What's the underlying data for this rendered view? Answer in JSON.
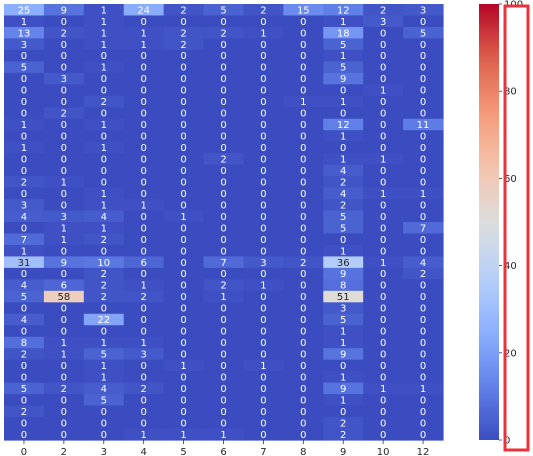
{
  "chart_data": {
    "type": "heatmap",
    "title": "",
    "xlabel": "",
    "ylabel": "",
    "x_tick_labels": [
      "0",
      "2",
      "3",
      "4",
      "5",
      "6",
      "7",
      "8",
      "9",
      "10",
      "12"
    ],
    "values": [
      [
        25,
        9,
        1,
        24,
        2,
        5,
        2,
        15,
        12,
        2,
        3
      ],
      [
        1,
        0,
        1,
        0,
        0,
        0,
        0,
        0,
        1,
        3,
        0
      ],
      [
        13,
        2,
        1,
        1,
        2,
        2,
        1,
        0,
        18,
        0,
        5
      ],
      [
        3,
        0,
        1,
        1,
        2,
        0,
        0,
        0,
        5,
        0,
        0
      ],
      [
        0,
        0,
        0,
        0,
        0,
        0,
        0,
        0,
        1,
        0,
        0
      ],
      [
        5,
        0,
        1,
        0,
        0,
        0,
        0,
        0,
        5,
        0,
        0
      ],
      [
        0,
        3,
        0,
        0,
        0,
        0,
        0,
        0,
        9,
        0,
        0
      ],
      [
        0,
        0,
        0,
        0,
        0,
        0,
        0,
        0,
        0,
        1,
        0
      ],
      [
        0,
        0,
        2,
        0,
        0,
        0,
        0,
        1,
        1,
        0,
        0
      ],
      [
        0,
        2,
        0,
        0,
        0,
        0,
        0,
        0,
        0,
        0,
        0
      ],
      [
        1,
        0,
        1,
        0,
        0,
        0,
        0,
        0,
        12,
        0,
        11
      ],
      [
        0,
        0,
        0,
        0,
        0,
        0,
        0,
        0,
        1,
        0,
        0
      ],
      [
        1,
        0,
        1,
        0,
        0,
        0,
        0,
        0,
        0,
        0,
        0
      ],
      [
        0,
        0,
        0,
        0,
        0,
        2,
        0,
        0,
        1,
        1,
        0
      ],
      [
        0,
        0,
        0,
        0,
        0,
        0,
        0,
        0,
        4,
        0,
        0
      ],
      [
        2,
        1,
        0,
        0,
        0,
        0,
        0,
        0,
        2,
        0,
        0
      ],
      [
        0,
        0,
        1,
        0,
        0,
        0,
        0,
        0,
        4,
        1,
        1
      ],
      [
        3,
        0,
        1,
        1,
        0,
        0,
        0,
        0,
        2,
        0,
        0
      ],
      [
        4,
        3,
        4,
        0,
        1,
        0,
        0,
        0,
        5,
        0,
        0
      ],
      [
        0,
        1,
        1,
        0,
        0,
        0,
        0,
        0,
        5,
        0,
        7
      ],
      [
        7,
        1,
        2,
        0,
        0,
        0,
        0,
        0,
        0,
        0,
        0
      ],
      [
        1,
        0,
        0,
        0,
        0,
        0,
        0,
        0,
        1,
        0,
        0
      ],
      [
        31,
        9,
        10,
        6,
        0,
        7,
        3,
        2,
        36,
        1,
        4
      ],
      [
        0,
        0,
        2,
        0,
        0,
        0,
        0,
        0,
        9,
        0,
        2
      ],
      [
        4,
        6,
        2,
        1,
        0,
        2,
        1,
        0,
        8,
        0,
        0
      ],
      [
        5,
        58,
        2,
        2,
        0,
        1,
        0,
        0,
        51,
        0,
        0
      ],
      [
        0,
        0,
        0,
        0,
        0,
        0,
        0,
        0,
        3,
        0,
        0
      ],
      [
        4,
        0,
        22,
        0,
        0,
        0,
        0,
        0,
        5,
        0,
        0
      ],
      [
        0,
        0,
        0,
        0,
        0,
        0,
        0,
        0,
        1,
        0,
        0
      ],
      [
        8,
        1,
        1,
        1,
        0,
        0,
        0,
        0,
        1,
        0,
        0
      ],
      [
        2,
        1,
        5,
        3,
        0,
        0,
        0,
        0,
        9,
        0,
        0
      ],
      [
        0,
        0,
        1,
        0,
        1,
        0,
        1,
        0,
        0,
        0,
        0
      ],
      [
        0,
        0,
        1,
        0,
        0,
        0,
        0,
        0,
        1,
        0,
        0
      ],
      [
        5,
        2,
        4,
        2,
        0,
        0,
        0,
        0,
        9,
        1,
        1
      ],
      [
        0,
        0,
        5,
        0,
        0,
        0,
        0,
        0,
        1,
        0,
        0
      ],
      [
        2,
        0,
        0,
        0,
        0,
        0,
        0,
        0,
        0,
        0,
        0
      ],
      [
        0,
        0,
        0,
        0,
        0,
        0,
        0,
        0,
        2,
        0,
        0
      ],
      [
        0,
        0,
        0,
        1,
        1,
        1,
        0,
        0,
        2,
        0,
        0
      ]
    ],
    "colormap": "coolwarm",
    "vmin": 0,
    "vmax": 100,
    "colorbar": {
      "ticks": [
        0,
        20,
        40,
        60,
        80,
        100
      ],
      "highlight_color": "#e8323c"
    },
    "grid": false
  }
}
